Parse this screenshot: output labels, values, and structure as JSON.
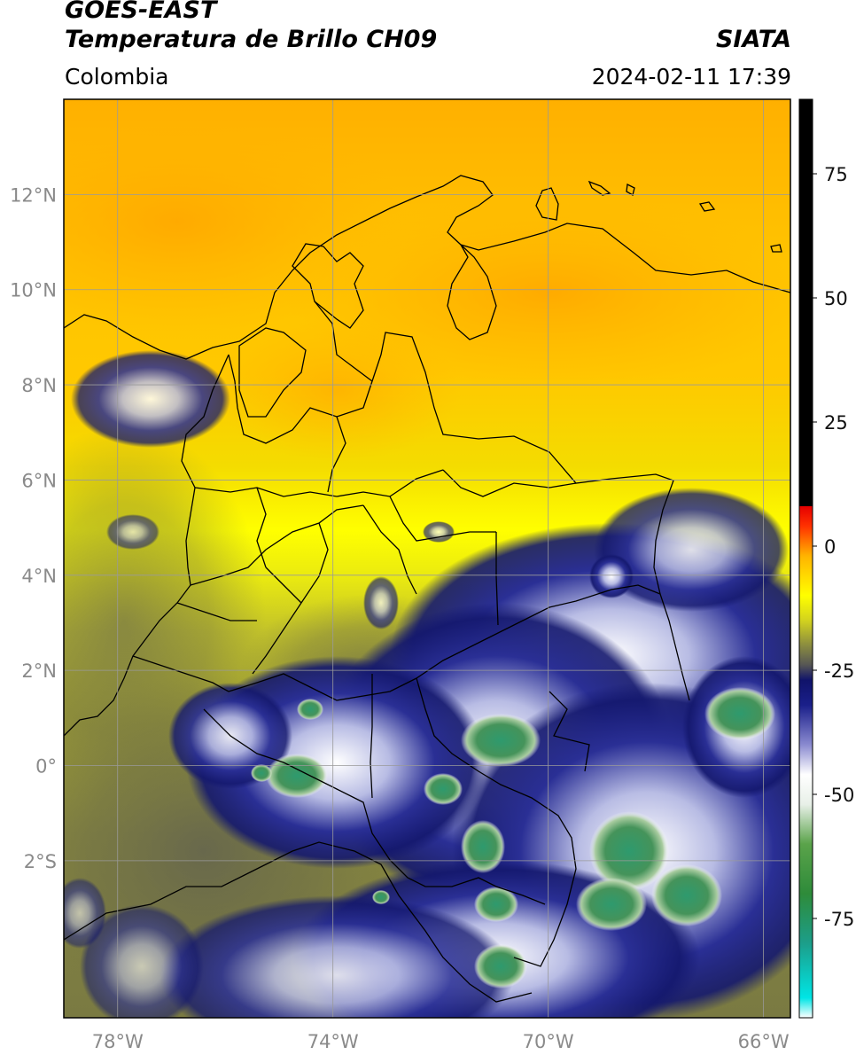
{
  "header": {
    "line1": "GOES-EAST",
    "line2": "Temperatura de Brillo CH09",
    "region": "Colombia",
    "agency": "SIATA",
    "datetime": "2024-02-11 17:39"
  },
  "map": {
    "lon_range": [
      -79.0,
      -65.5
    ],
    "lat_range": [
      -5.3,
      14.0
    ],
    "lon_ticks": [
      {
        "value": -78,
        "label": "78°W"
      },
      {
        "value": -74,
        "label": "74°W"
      },
      {
        "value": -70,
        "label": "70°W"
      },
      {
        "value": -66,
        "label": "66°W"
      }
    ],
    "lat_ticks": [
      {
        "value": 12,
        "label": "12°N"
      },
      {
        "value": 10,
        "label": "10°N"
      },
      {
        "value": 8,
        "label": "8°N"
      },
      {
        "value": 6,
        "label": "6°N"
      },
      {
        "value": 4,
        "label": "4°N"
      },
      {
        "value": 2,
        "label": "2°N"
      },
      {
        "value": 0,
        "label": "0°"
      },
      {
        "value": -2,
        "label": "2°S"
      }
    ]
  },
  "colorbar": {
    "range": [
      -95,
      90
    ],
    "ticks": [
      {
        "value": 75,
        "label": "75"
      },
      {
        "value": 50,
        "label": "50"
      },
      {
        "value": 25,
        "label": "25"
      },
      {
        "value": 0,
        "label": "0"
      },
      {
        "value": -25,
        "label": "-25"
      },
      {
        "value": -50,
        "label": "-50"
      },
      {
        "value": -75,
        "label": "-75"
      }
    ],
    "stops": [
      {
        "value": -95,
        "color": "#ffffff"
      },
      {
        "value": -91,
        "color": "#00e5e5"
      },
      {
        "value": -80,
        "color": "#1c9e8a"
      },
      {
        "value": -70,
        "color": "#2e8b3a"
      },
      {
        "value": -60,
        "color": "#5aa34a"
      },
      {
        "value": -52,
        "color": "#e8f0e8"
      },
      {
        "value": -46,
        "color": "#ffffff"
      },
      {
        "value": -40,
        "color": "#8a8ad0"
      },
      {
        "value": -32,
        "color": "#1a1f8a"
      },
      {
        "value": -27,
        "color": "#10136a"
      },
      {
        "value": -24,
        "color": "#555555"
      },
      {
        "value": -20,
        "color": "#8a8c40"
      },
      {
        "value": -15,
        "color": "#d2d21e"
      },
      {
        "value": -10,
        "color": "#ffff00"
      },
      {
        "value": -2,
        "color": "#ffb400"
      },
      {
        "value": 4,
        "color": "#ff3200"
      },
      {
        "value": 8,
        "color": "#e60000"
      },
      {
        "value": 8.01,
        "color": "#000000"
      },
      {
        "value": 90,
        "color": "#000000"
      }
    ]
  }
}
